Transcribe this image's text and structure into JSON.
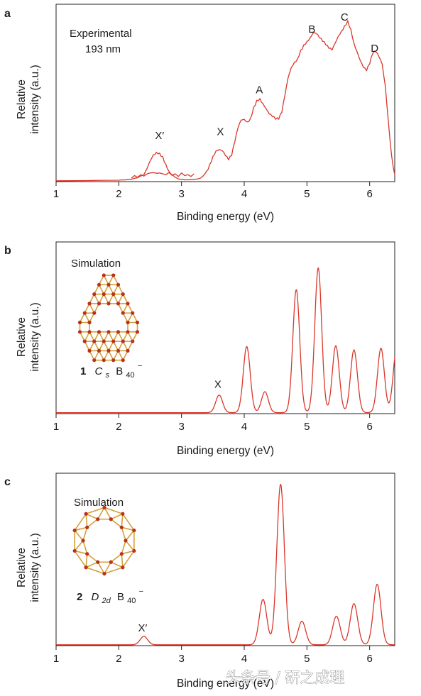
{
  "colors": {
    "curve": "#d9372a",
    "axis": "#222222",
    "bond": "#d4a03a",
    "atom": "#b8321f"
  },
  "watermark": "头条号 / 研之成理",
  "chart_data": [
    {
      "panel": "a",
      "type": "line",
      "xlabel": "Binding energy (eV)",
      "ylabel_lines": [
        "Relative",
        "intensity (a.u.)"
      ],
      "xlim": [
        1,
        6.4
      ],
      "ylim": [
        0,
        1
      ],
      "xticks": [
        1,
        2,
        3,
        4,
        5,
        6
      ],
      "notes": [
        "Experimental",
        "193 nm"
      ],
      "peak_labels": [
        {
          "text": "X′",
          "x": 2.65,
          "y": 0.245
        },
        {
          "text": "X",
          "x": 3.62,
          "y": 0.268
        },
        {
          "text": "A",
          "x": 4.24,
          "y": 0.51
        },
        {
          "text": "B",
          "x": 5.08,
          "y": 0.86
        },
        {
          "text": "C",
          "x": 5.6,
          "y": 0.93
        },
        {
          "text": "D",
          "x": 6.08,
          "y": 0.75
        }
      ],
      "series": [
        {
          "x": [
            1.0,
            1.5,
            2.0,
            2.1,
            2.2,
            2.3,
            2.4,
            2.45,
            2.5,
            2.55,
            2.6,
            2.65,
            2.7,
            2.75,
            2.8,
            2.85,
            2.9,
            2.95,
            3.0,
            3.05,
            3.1,
            3.15,
            3.2,
            3.25,
            3.3,
            3.35,
            3.4,
            3.45,
            3.5,
            3.55,
            3.6,
            3.65,
            3.7,
            3.75,
            3.8,
            3.85,
            3.9,
            3.95,
            4.0,
            4.05,
            4.1,
            4.15,
            4.2,
            4.25,
            4.3,
            4.35,
            4.4,
            4.45,
            4.5,
            4.55,
            4.6,
            4.65,
            4.7,
            4.75,
            4.8,
            4.85,
            4.9,
            4.95,
            5.0,
            5.05,
            5.1,
            5.15,
            5.2,
            5.25,
            5.3,
            5.35,
            5.4,
            5.45,
            5.5,
            5.55,
            5.6,
            5.65,
            5.7,
            5.75,
            5.8,
            5.85,
            5.9,
            5.95,
            6.0,
            6.05,
            6.1,
            6.15,
            6.2,
            6.25,
            6.3,
            6.35,
            6.4
          ],
          "y": [
            0.005,
            0.006,
            0.008,
            0.01,
            0.013,
            0.022,
            0.04,
            0.075,
            0.12,
            0.155,
            0.17,
            0.165,
            0.145,
            0.1,
            0.06,
            0.04,
            0.025,
            0.015,
            0.012,
            0.01,
            0.01,
            0.011,
            0.013,
            0.015,
            0.02,
            0.035,
            0.06,
            0.1,
            0.145,
            0.178,
            0.185,
            0.178,
            0.15,
            0.125,
            0.15,
            0.23,
            0.31,
            0.355,
            0.36,
            0.345,
            0.365,
            0.43,
            0.47,
            0.48,
            0.45,
            0.42,
            0.39,
            0.375,
            0.36,
            0.36,
            0.4,
            0.5,
            0.6,
            0.66,
            0.69,
            0.71,
            0.76,
            0.79,
            0.81,
            0.83,
            0.86,
            0.855,
            0.83,
            0.81,
            0.79,
            0.77,
            0.76,
            0.8,
            0.84,
            0.87,
            0.9,
            0.93,
            0.88,
            0.8,
            0.75,
            0.7,
            0.66,
            0.64,
            0.68,
            0.74,
            0.75,
            0.72,
            0.68,
            0.55,
            0.34,
            0.15,
            0.04
          ]
        },
        {
          "x": [
            2.2,
            2.25,
            2.3,
            2.35,
            2.4,
            2.45,
            2.5,
            2.55,
            2.6,
            2.65,
            2.7,
            2.75,
            2.8,
            2.85,
            2.9,
            2.95,
            3.0,
            3.05,
            3.1,
            3.15,
            3.2
          ],
          "y": [
            0.02,
            0.035,
            0.025,
            0.04,
            0.032,
            0.045,
            0.05,
            0.052,
            0.048,
            0.05,
            0.045,
            0.04,
            0.052,
            0.036,
            0.045,
            0.03,
            0.05,
            0.035,
            0.04,
            0.03,
            0.045
          ]
        }
      ]
    },
    {
      "panel": "b",
      "type": "line",
      "xlabel": "Binding energy (eV)",
      "ylabel_lines": [
        "Relative",
        "intensity (a.u.)"
      ],
      "xlim": [
        1,
        6.4
      ],
      "ylim": [
        0,
        1
      ],
      "xticks": [
        1,
        2,
        3,
        4,
        5,
        6
      ],
      "notes": [
        "Simulation"
      ],
      "caption": {
        "number": "1",
        "sym": "C",
        "sub_sym": "s",
        "formula": "B",
        "sub_formula": "40",
        "charge": "−"
      },
      "peak_labels": [
        {
          "text": "X",
          "x": 3.58,
          "y": 0.155
        }
      ],
      "series": [
        {
          "baseline": 0.006,
          "width": 0.055,
          "peaks": [
            {
              "x": 3.6,
              "y": 0.105
            },
            {
              "x": 4.04,
              "y": 0.395
            },
            {
              "x": 4.33,
              "y": 0.125
            },
            {
              "x": 4.83,
              "y": 0.735
            },
            {
              "x": 5.18,
              "y": 0.865
            },
            {
              "x": 5.46,
              "y": 0.4
            },
            {
              "x": 5.75,
              "y": 0.375
            },
            {
              "x": 6.18,
              "y": 0.385
            },
            {
              "x": 6.43,
              "y": 0.38
            }
          ]
        }
      ]
    },
    {
      "panel": "c",
      "type": "line",
      "xlabel": "Binding energy (eV)",
      "ylabel_lines": [
        "Relative",
        "intensity (a.u.)"
      ],
      "xlim": [
        1,
        6.4
      ],
      "ylim": [
        0,
        1
      ],
      "xticks": [
        1,
        2,
        3,
        4,
        5,
        6
      ],
      "notes": [
        "Simulation"
      ],
      "caption": {
        "number": "2",
        "sym": "D",
        "sub_sym": "2d",
        "formula": "B",
        "sub_formula": "40",
        "charge": "−"
      },
      "peak_labels": [
        {
          "text": "X′",
          "x": 2.38,
          "y": 0.085
        }
      ],
      "series": [
        {
          "baseline": 0.005,
          "width": 0.06,
          "peaks": [
            {
              "x": 2.4,
              "y": 0.05
            },
            {
              "x": 4.3,
              "y": 0.27
            },
            {
              "x": 4.58,
              "y": 0.955
            },
            {
              "x": 4.92,
              "y": 0.14
            },
            {
              "x": 5.47,
              "y": 0.17
            },
            {
              "x": 5.75,
              "y": 0.245
            },
            {
              "x": 6.12,
              "y": 0.36
            }
          ]
        }
      ]
    }
  ]
}
